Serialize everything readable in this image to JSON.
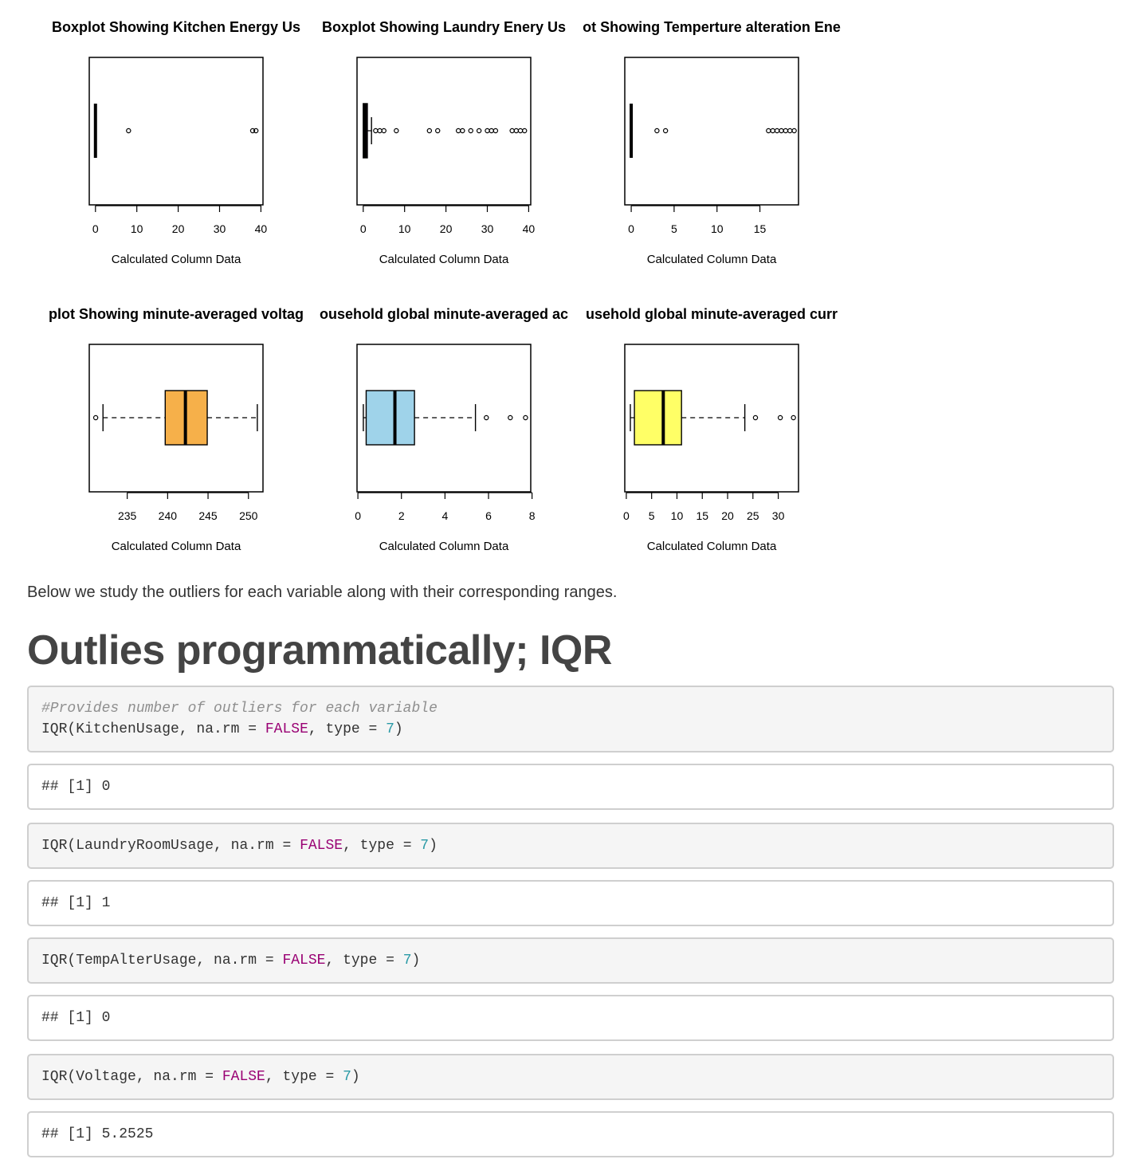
{
  "chart_data": [
    {
      "type": "boxplot",
      "orientation": "horizontal",
      "title": "Boxplot Showing Kitchen Energy Us",
      "xlabel": "Calculated Column Data",
      "xlim": [
        -1.5,
        40.5
      ],
      "ticks": [
        0,
        10,
        20,
        30,
        40
      ],
      "box_color": "#000000",
      "stats": {
        "min": 0,
        "q1": 0,
        "median": 0,
        "q3": 0,
        "max": 0
      },
      "outliers": [
        8,
        38,
        38.8
      ]
    },
    {
      "type": "boxplot",
      "orientation": "horizontal",
      "title": "Boxplot Showing Laundry Enery Us",
      "xlabel": "Calculated Column Data",
      "xlim": [
        -1.5,
        40.5
      ],
      "ticks": [
        0,
        10,
        20,
        30,
        40
      ],
      "box_color": "#d98bd6",
      "stats": {
        "min": 0,
        "q1": 0,
        "median": 0.5,
        "q3": 1,
        "max": 2
      },
      "outliers": [
        3,
        4,
        5,
        8,
        16,
        18,
        23,
        24,
        26,
        28,
        30,
        31,
        32,
        36,
        37,
        38,
        39
      ]
    },
    {
      "type": "boxplot",
      "orientation": "horizontal",
      "title": "ot Showing Temperture alteration Ene",
      "xlabel": "Calculated Column Data",
      "xlim": [
        -0.75,
        19.5
      ],
      "ticks": [
        0,
        5,
        10,
        15
      ],
      "box_color": "#000000",
      "stats": {
        "min": 0,
        "q1": 0,
        "median": 0,
        "q3": 0,
        "max": 0
      },
      "outliers": [
        3,
        4,
        16,
        16.5,
        17,
        17.5,
        18,
        18.5,
        19
      ]
    },
    {
      "type": "boxplot",
      "orientation": "horizontal",
      "title": "plot Showing minute-averaged voltag",
      "xlabel": "Calculated Column Data",
      "xlim": [
        230.3,
        251.8
      ],
      "ticks": [
        235,
        240,
        245,
        250
      ],
      "box_color": "#f6b04a",
      "stats": {
        "min": 232,
        "q1": 239.7,
        "median": 242.2,
        "q3": 244.9,
        "max": 251.1
      },
      "outliers": [
        231.1
      ]
    },
    {
      "type": "boxplot",
      "orientation": "horizontal",
      "title": "ousehold global minute-averaged ac",
      "xlabel": "Calculated Column Data",
      "xlim": [
        -0.04,
        7.94
      ],
      "ticks": [
        0,
        2,
        4,
        6,
        8
      ],
      "box_color": "#9fd3ea",
      "stats": {
        "min": 0.25,
        "q1": 0.38,
        "median": 1.7,
        "q3": 2.6,
        "max": 5.4
      },
      "outliers": [
        5.9,
        7.0,
        7.7
      ]
    },
    {
      "type": "boxplot",
      "orientation": "horizontal",
      "title": "usehold global minute-averaged curr",
      "xlabel": "Calculated Column Data",
      "xlim": [
        -0.3,
        34.0
      ],
      "ticks": [
        0,
        5,
        10,
        15,
        20,
        25,
        30
      ],
      "box_color": "#ffff66",
      "stats": {
        "min": 0.8,
        "q1": 1.6,
        "median": 7.3,
        "q3": 10.9,
        "max": 23.4
      },
      "outliers": [
        25.5,
        30.4,
        33.0
      ]
    }
  ],
  "text": {
    "paragraph": "Below we study the outliers for each variable along with their corresponding ranges.",
    "heading": "Outlies programmatically; IQR"
  },
  "code": [
    {
      "kind": "source",
      "comment": "#Provides number of outliers for each variable",
      "pre": "IQR(KitchenUsage, na.rm = ",
      "kw": "FALSE",
      "mid": ", type = ",
      "num": "7",
      "post": ")"
    },
    {
      "kind": "output",
      "text": "## [1] 0"
    },
    {
      "kind": "source",
      "comment": "",
      "pre": "IQR(LaundryRoomUsage, na.rm = ",
      "kw": "FALSE",
      "mid": ", type = ",
      "num": "7",
      "post": ")"
    },
    {
      "kind": "output",
      "text": "## [1] 1"
    },
    {
      "kind": "source",
      "comment": "",
      "pre": "IQR(TempAlterUsage, na.rm = ",
      "kw": "FALSE",
      "mid": ", type = ",
      "num": "7",
      "post": ")"
    },
    {
      "kind": "output",
      "text": "## [1] 0"
    },
    {
      "kind": "source",
      "comment": "",
      "pre": "IQR(Voltage, na.rm = ",
      "kw": "FALSE",
      "mid": ", type = ",
      "num": "7",
      "post": ")"
    },
    {
      "kind": "output",
      "text": "## [1] 5.2525"
    }
  ]
}
